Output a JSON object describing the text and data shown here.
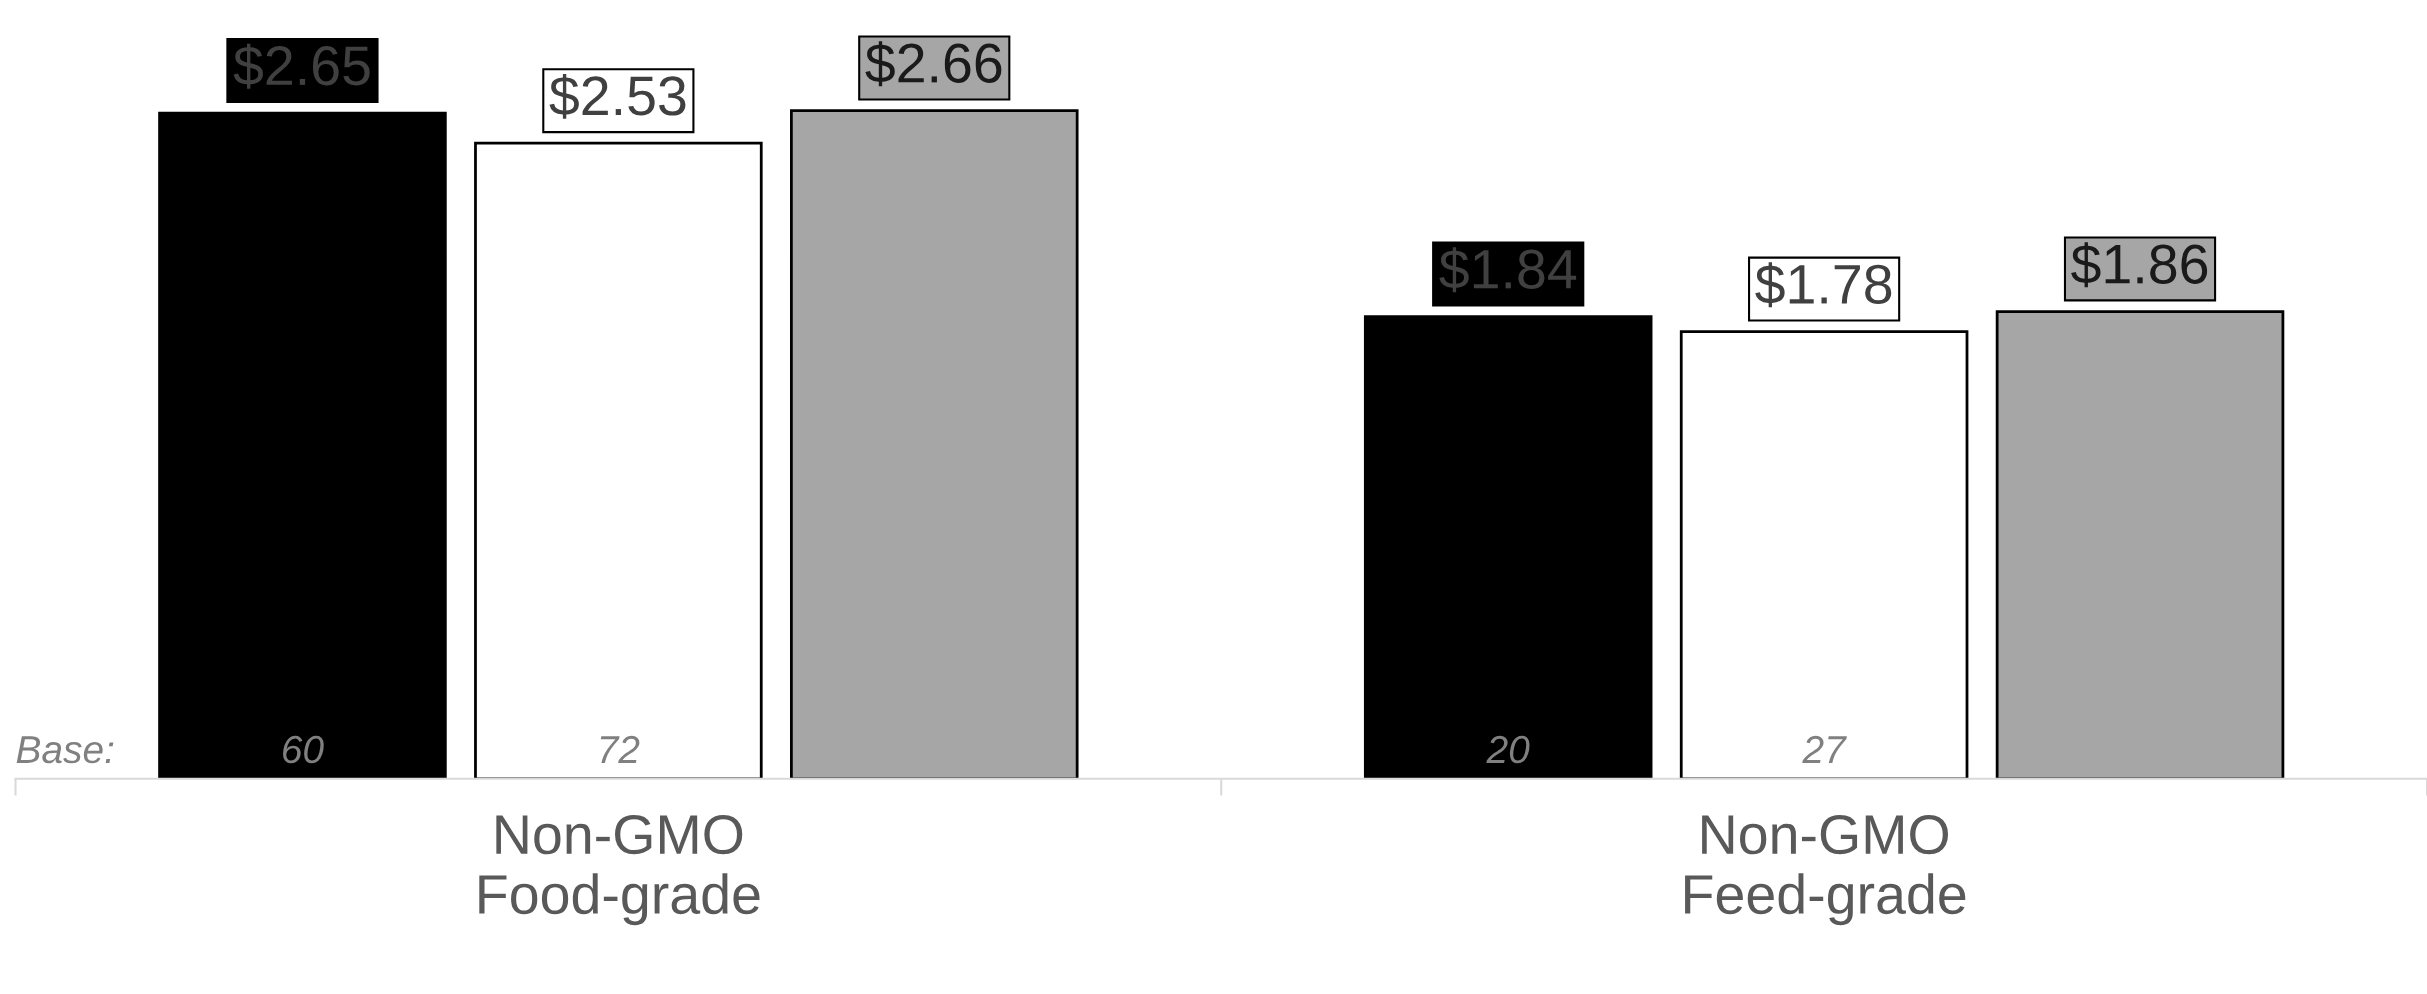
{
  "chart_data": {
    "type": "bar",
    "categories": [
      "Non-GMO\nFood-grade",
      "Non-GMO\nFeed-grade"
    ],
    "series": [
      {
        "color": "#000000",
        "values": [
          2.65,
          1.84
        ],
        "value_labels": [
          "$2.65",
          "$1.84"
        ]
      },
      {
        "color": "#ffffff",
        "values": [
          2.53,
          1.78
        ],
        "value_labels": [
          "$2.53",
          "$1.78"
        ]
      },
      {
        "color": "#a6a6a6",
        "values": [
          2.66,
          1.86
        ],
        "value_labels": [
          "$2.66",
          "$1.86"
        ]
      }
    ],
    "tick_labels": "x",
    "grid": false,
    "legend": false,
    "annotations": [
      "Base:",
      "60",
      "72",
      "20",
      "27"
    ]
  }
}
